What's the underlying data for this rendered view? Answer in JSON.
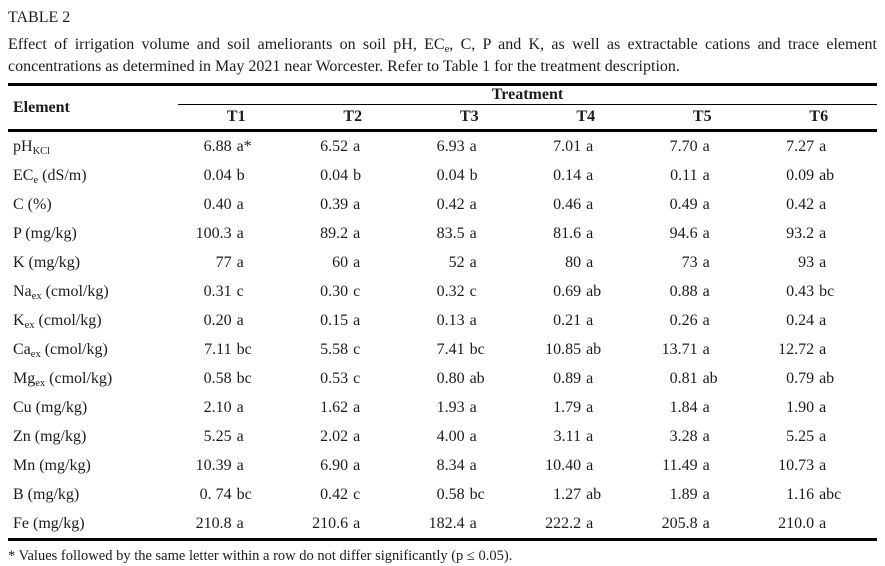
{
  "page": {
    "title": "TABLE 2",
    "caption": {
      "line1_pre": "Effect of irrigation volume and soil ameliorants on soil pH, EC",
      "line1_sub": "e",
      "line1_post": ", C, P and K, as well as extractable cations and trace element",
      "line2": "concentrations as determined in May 2021 near Worcester. Refer to Table 1 for the treatment description."
    },
    "footnote": "* Values followed by the same letter within a row do not differ significantly (p ≤ 0.05)."
  },
  "table": {
    "element_header": "Element",
    "treatment_header": "Treatment",
    "treatments": [
      "T1",
      "T2",
      "T3",
      "T4",
      "T5",
      "T6"
    ],
    "rows": [
      {
        "element": {
          "pre": "pH",
          "sub": "KCl",
          "post": ""
        },
        "values": [
          {
            "n": "6.88",
            "s": "a*"
          },
          {
            "n": "6.52",
            "s": "a"
          },
          {
            "n": "6.93",
            "s": "a"
          },
          {
            "n": "7.01",
            "s": "a"
          },
          {
            "n": "7.70",
            "s": "a"
          },
          {
            "n": "7.27",
            "s": "a"
          }
        ]
      },
      {
        "element": {
          "pre": "EC",
          "sub": "e",
          "post": " (dS/m)"
        },
        "values": [
          {
            "n": "0.04",
            "s": "b"
          },
          {
            "n": "0.04",
            "s": "b"
          },
          {
            "n": "0.04",
            "s": "b"
          },
          {
            "n": "0.14",
            "s": "a"
          },
          {
            "n": "0.11",
            "s": "a"
          },
          {
            "n": "0.09",
            "s": "ab"
          }
        ]
      },
      {
        "element": {
          "pre": "C (%)",
          "sub": "",
          "post": ""
        },
        "values": [
          {
            "n": "0.40",
            "s": "a"
          },
          {
            "n": "0.39",
            "s": "a"
          },
          {
            "n": "0.42",
            "s": "a"
          },
          {
            "n": "0.46",
            "s": "a"
          },
          {
            "n": "0.49",
            "s": "a"
          },
          {
            "n": "0.42",
            "s": "a"
          }
        ]
      },
      {
        "element": {
          "pre": "P (mg/kg)",
          "sub": "",
          "post": ""
        },
        "values": [
          {
            "n": "100.3",
            "s": "a"
          },
          {
            "n": "89.2",
            "s": "a"
          },
          {
            "n": "83.5",
            "s": "a"
          },
          {
            "n": "81.6",
            "s": "a"
          },
          {
            "n": "94.6",
            "s": "a"
          },
          {
            "n": "93.2",
            "s": "a"
          }
        ]
      },
      {
        "element": {
          "pre": "K (mg/kg)",
          "sub": "",
          "post": ""
        },
        "values": [
          {
            "n": "77",
            "s": "a"
          },
          {
            "n": "60",
            "s": "a"
          },
          {
            "n": "52",
            "s": "a"
          },
          {
            "n": "80",
            "s": "a"
          },
          {
            "n": "73",
            "s": "a"
          },
          {
            "n": "93",
            "s": "a"
          }
        ]
      },
      {
        "element": {
          "pre": "Na",
          "sub": "ex",
          "post": " (cmol/kg)"
        },
        "values": [
          {
            "n": "0.31",
            "s": "c"
          },
          {
            "n": "0.30",
            "s": "c"
          },
          {
            "n": "0.32",
            "s": "c"
          },
          {
            "n": "0.69",
            "s": "ab"
          },
          {
            "n": "0.88",
            "s": "a"
          },
          {
            "n": "0.43",
            "s": "bc"
          }
        ]
      },
      {
        "element": {
          "pre": "K",
          "sub": "ex",
          "post": " (cmol/kg)"
        },
        "values": [
          {
            "n": "0.20",
            "s": "a"
          },
          {
            "n": "0.15",
            "s": "a"
          },
          {
            "n": "0.13",
            "s": "a"
          },
          {
            "n": "0.21",
            "s": "a"
          },
          {
            "n": "0.26",
            "s": "a"
          },
          {
            "n": "0.24",
            "s": "a"
          }
        ]
      },
      {
        "element": {
          "pre": "Ca",
          "sub": "ex",
          "post": " (cmol/kg)"
        },
        "values": [
          {
            "n": "7.11",
            "s": "bc"
          },
          {
            "n": "5.58",
            "s": "c"
          },
          {
            "n": "7.41",
            "s": "bc"
          },
          {
            "n": "10.85",
            "s": "ab"
          },
          {
            "n": "13.71",
            "s": "a"
          },
          {
            "n": "12.72",
            "s": "a"
          }
        ]
      },
      {
        "element": {
          "pre": "Mg",
          "sub": "ex",
          "post": " (cmol/kg)"
        },
        "values": [
          {
            "n": "0.58",
            "s": "bc"
          },
          {
            "n": "0.53",
            "s": "c"
          },
          {
            "n": "0.80",
            "s": "ab"
          },
          {
            "n": "0.89",
            "s": "a"
          },
          {
            "n": "0.81",
            "s": "ab"
          },
          {
            "n": "0.79",
            "s": "ab"
          }
        ]
      },
      {
        "element": {
          "pre": "Cu (mg/kg)",
          "sub": "",
          "post": ""
        },
        "values": [
          {
            "n": "2.10",
            "s": "a"
          },
          {
            "n": "1.62",
            "s": "a"
          },
          {
            "n": "1.93",
            "s": "a"
          },
          {
            "n": "1.79",
            "s": "a"
          },
          {
            "n": "1.84",
            "s": "a"
          },
          {
            "n": "1.90",
            "s": "a"
          }
        ]
      },
      {
        "element": {
          "pre": "Zn (mg/kg)",
          "sub": "",
          "post": ""
        },
        "values": [
          {
            "n": "5.25",
            "s": "a"
          },
          {
            "n": "2.02",
            "s": "a"
          },
          {
            "n": "4.00",
            "s": "a"
          },
          {
            "n": "3.11",
            "s": "a"
          },
          {
            "n": "3.28",
            "s": "a"
          },
          {
            "n": "5.25",
            "s": "a"
          }
        ]
      },
      {
        "element": {
          "pre": "Mn (mg/kg)",
          "sub": "",
          "post": ""
        },
        "values": [
          {
            "n": "10.39",
            "s": "a"
          },
          {
            "n": "6.90",
            "s": "a"
          },
          {
            "n": "8.34",
            "s": "a"
          },
          {
            "n": "10.40",
            "s": "a"
          },
          {
            "n": "11.49",
            "s": "a"
          },
          {
            "n": "10.73",
            "s": "a"
          }
        ]
      },
      {
        "element": {
          "pre": "B (mg/kg)",
          "sub": "",
          "post": ""
        },
        "values": [
          {
            "n": "0. 74",
            "s": "bc"
          },
          {
            "n": "0.42",
            "s": "c"
          },
          {
            "n": "0.58",
            "s": "bc"
          },
          {
            "n": "1.27",
            "s": "ab"
          },
          {
            "n": "1.89",
            "s": "a"
          },
          {
            "n": "1.16",
            "s": "abc"
          }
        ]
      },
      {
        "element": {
          "pre": "Fe (mg/kg)",
          "sub": "",
          "post": ""
        },
        "values": [
          {
            "n": "210.8",
            "s": "a"
          },
          {
            "n": "210.6",
            "s": "a"
          },
          {
            "n": "182.4",
            "s": "a"
          },
          {
            "n": "222.2",
            "s": "a"
          },
          {
            "n": "205.8",
            "s": "a"
          },
          {
            "n": "210.0",
            "s": "a"
          }
        ]
      }
    ]
  }
}
